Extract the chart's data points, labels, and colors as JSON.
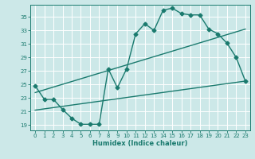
{
  "xlabel": "Humidex (Indice chaleur)",
  "ylabel": "",
  "bg_color": "#cce8e8",
  "grid_color": "#ffffff",
  "line_color": "#1a7a6e",
  "x_ticks": [
    0,
    1,
    2,
    3,
    4,
    5,
    6,
    7,
    8,
    9,
    10,
    11,
    12,
    13,
    14,
    15,
    16,
    17,
    18,
    19,
    20,
    21,
    22,
    23
  ],
  "y_ticks": [
    19,
    21,
    23,
    25,
    27,
    29,
    31,
    33,
    35
  ],
  "xlim": [
    -0.5,
    23.5
  ],
  "ylim": [
    18.2,
    36.8
  ],
  "line1_x": [
    0,
    1,
    2,
    3,
    4,
    5,
    6,
    7,
    8,
    9,
    10,
    11,
    12,
    13,
    14,
    15,
    16,
    17,
    18,
    19,
    20,
    21,
    22,
    23
  ],
  "line1_y": [
    24.8,
    22.8,
    22.8,
    21.3,
    20.0,
    19.1,
    19.1,
    19.1,
    27.3,
    24.5,
    27.3,
    32.5,
    34.0,
    33.0,
    36.0,
    36.3,
    35.5,
    35.3,
    35.3,
    33.2,
    32.5,
    31.1,
    29.0,
    25.5
  ],
  "line2_x": [
    0,
    23
  ],
  "line2_y": [
    23.8,
    33.2
  ],
  "line3_x": [
    0,
    23
  ],
  "line3_y": [
    21.2,
    25.5
  ],
  "marker_size": 2.5,
  "line_width": 1.0
}
